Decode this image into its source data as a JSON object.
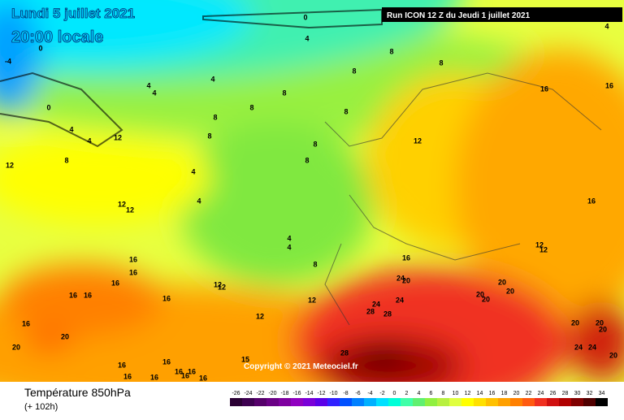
{
  "header": {
    "date": "Lundi 5 juillet 2021",
    "time": "20:00 locale",
    "run": "Run ICON 12 Z du Jeudi 1 juillet 2021",
    "copyright": "Copyright © 2021 Meteociel.fr"
  },
  "footer": {
    "title": "Température 850hPa",
    "lead": "(+ 102h)"
  },
  "legend": {
    "ticks": [
      -26,
      -24,
      -22,
      -20,
      -18,
      -16,
      -14,
      -12,
      -10,
      -8,
      -6,
      -4,
      -2,
      0,
      2,
      4,
      6,
      8,
      10,
      12,
      14,
      16,
      18,
      20,
      22,
      24,
      26,
      28,
      30,
      32,
      34
    ],
    "colors": [
      "#2a0033",
      "#3d0050",
      "#55006a",
      "#6a0085",
      "#7f00a0",
      "#9000c0",
      "#7a00d8",
      "#5a00e8",
      "#3020ff",
      "#0050ff",
      "#0080ff",
      "#00b0ff",
      "#00e0ff",
      "#00ffd8",
      "#40ffa8",
      "#60f070",
      "#90f040",
      "#b8f040",
      "#e0ff40",
      "#ffff00",
      "#ffe000",
      "#ffc000",
      "#ffa000",
      "#ff8000",
      "#ff5a10",
      "#f03020",
      "#d01010",
      "#b00000",
      "#800000",
      "#500000",
      "#000000"
    ]
  },
  "contour_labels": [
    0,
    4,
    4,
    -4,
    0,
    8,
    8,
    8,
    4,
    4,
    4,
    8,
    8,
    8,
    8,
    0,
    4,
    4,
    12,
    12,
    8,
    16,
    16,
    8,
    12,
    8,
    8,
    4,
    4,
    12,
    12,
    16,
    4,
    4,
    8,
    16,
    12,
    12,
    16,
    16,
    16,
    16,
    16,
    12,
    12,
    20,
    24,
    12,
    16,
    20,
    20,
    20,
    20,
    24,
    28,
    24,
    28,
    12,
    16,
    20,
    20,
    20,
    20,
    20,
    24,
    24,
    20,
    28,
    16,
    16,
    15,
    16,
    16,
    16,
    16,
    16,
    16
  ]
}
